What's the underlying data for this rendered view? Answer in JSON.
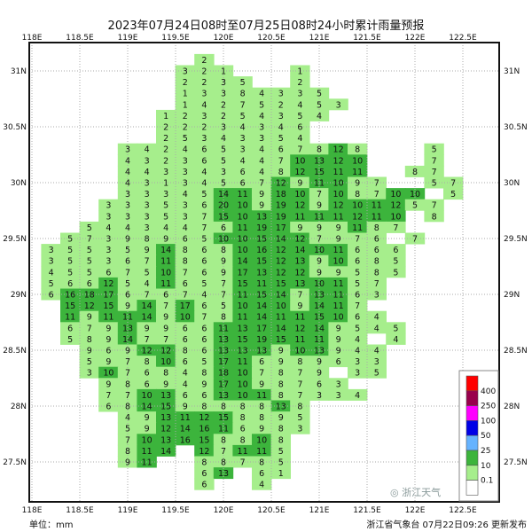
{
  "title": "2023年07月24日08时至07月25日08时24小时累计雨量预报",
  "unit_label": "单位：mm",
  "issuer": "浙江省气象台 07月22日09:26 更新发布",
  "watermark": "浙江天气",
  "lon_ticks": [
    "118E",
    "118.5E",
    "119E",
    "119.5E",
    "120E",
    "120.5E",
    "121E",
    "121.5E",
    "122E",
    "122.5E"
  ],
  "lat_ticks": [
    "31N",
    "30.5N",
    "30N",
    "29.5N",
    "29N",
    "28.5N",
    "28N",
    "27.5N"
  ],
  "legend": {
    "levels": [
      "0.1",
      "10",
      "25",
      "50",
      "100",
      "250",
      "400"
    ],
    "colors": [
      "#ffffff",
      "#a6ee8c",
      "#3cb43c",
      "#66b3ff",
      "#0000e6",
      "#ff00ff",
      "#99004c",
      "#ff0000"
    ]
  },
  "colors": {
    "land_light": "#a6ee8c",
    "land_dark": "#3cb43c",
    "island": "#777777"
  },
  "grid": {
    "lons": [
      118.2,
      118.4,
      118.6,
      118.8,
      119.0,
      119.2,
      119.4,
      119.6,
      119.8,
      120.0,
      120.2,
      120.4,
      120.6,
      120.8,
      121.0,
      121.2,
      121.4,
      121.6,
      121.8,
      122.0,
      122.2,
      122.4
    ],
    "rows": [
      {
        "lat": 31.1,
        "v": [
          null,
          null,
          null,
          null,
          null,
          null,
          null,
          null,
          2,
          null,
          null,
          null,
          null,
          null,
          null,
          null,
          null,
          null,
          null,
          null,
          null,
          null
        ]
      },
      {
        "lat": 31.0,
        "v": [
          null,
          null,
          null,
          null,
          null,
          null,
          null,
          3,
          2,
          1,
          null,
          null,
          null,
          1,
          null,
          null,
          null,
          null,
          null,
          null,
          null,
          null
        ]
      },
      {
        "lat": 30.9,
        "v": [
          null,
          null,
          null,
          null,
          null,
          null,
          null,
          2,
          2,
          3,
          5,
          null,
          null,
          2,
          null,
          null,
          null,
          null,
          null,
          null,
          null,
          null
        ]
      },
      {
        "lat": 30.8,
        "v": [
          null,
          null,
          null,
          null,
          null,
          null,
          null,
          1,
          3,
          3,
          8,
          4,
          3,
          3,
          5,
          null,
          null,
          null,
          null,
          null,
          null,
          null
        ]
      },
      {
        "lat": 30.7,
        "v": [
          null,
          null,
          null,
          null,
          null,
          null,
          null,
          1,
          4,
          2,
          7,
          5,
          2,
          4,
          5,
          3,
          null,
          null,
          null,
          null,
          null,
          null
        ]
      },
      {
        "lat": 30.6,
        "v": [
          null,
          null,
          null,
          null,
          null,
          null,
          1,
          2,
          3,
          2,
          5,
          4,
          3,
          5,
          4,
          null,
          null,
          null,
          null,
          null,
          null,
          null
        ]
      },
      {
        "lat": 30.5,
        "v": [
          null,
          null,
          null,
          null,
          null,
          null,
          2,
          2,
          2,
          3,
          4,
          3,
          4,
          6,
          null,
          null,
          null,
          null,
          null,
          null,
          null,
          null
        ]
      },
      {
        "lat": 30.4,
        "v": [
          null,
          null,
          null,
          null,
          null,
          null,
          2,
          5,
          3,
          4,
          3,
          3,
          5,
          4,
          null,
          null,
          null,
          null,
          null,
          null,
          null,
          null
        ]
      },
      {
        "lat": 30.3,
        "v": [
          null,
          null,
          null,
          null,
          3,
          4,
          2,
          4,
          6,
          5,
          3,
          4,
          6,
          7,
          8,
          12,
          8,
          null,
          null,
          null,
          5,
          null
        ]
      },
      {
        "lat": 30.2,
        "v": [
          null,
          null,
          null,
          null,
          4,
          3,
          2,
          3,
          6,
          5,
          4,
          4,
          7,
          10,
          13,
          12,
          10,
          null,
          null,
          null,
          7,
          null
        ]
      },
      {
        "lat": 30.1,
        "v": [
          null,
          null,
          null,
          null,
          4,
          4,
          3,
          3,
          4,
          3,
          6,
          4,
          8,
          12,
          15,
          11,
          11,
          null,
          null,
          8,
          7,
          null
        ]
      },
      {
        "lat": 30.0,
        "v": [
          null,
          null,
          null,
          null,
          4,
          3,
          1,
          3,
          4,
          5,
          6,
          7,
          12,
          9,
          11,
          10,
          9,
          7,
          null,
          null,
          5,
          7
        ]
      },
      {
        "lat": 29.9,
        "v": [
          null,
          null,
          null,
          null,
          3,
          3,
          3,
          4,
          5,
          14,
          11,
          9,
          18,
          10,
          7,
          10,
          8,
          7,
          10,
          10,
          null,
          5
        ]
      },
      {
        "lat": 29.8,
        "v": [
          null,
          null,
          null,
          3,
          3,
          3,
          5,
          3,
          6,
          20,
          10,
          9,
          19,
          12,
          9,
          12,
          10,
          11,
          12,
          5,
          7,
          null
        ]
      },
      {
        "lat": 29.7,
        "v": [
          null,
          null,
          null,
          3,
          3,
          3,
          5,
          3,
          7,
          15,
          10,
          13,
          19,
          11,
          11,
          11,
          12,
          11,
          10,
          null,
          8,
          null
        ]
      },
      {
        "lat": 29.6,
        "v": [
          null,
          null,
          5,
          4,
          4,
          3,
          4,
          4,
          7,
          6,
          11,
          19,
          17,
          9,
          9,
          9,
          11,
          8,
          7,
          null,
          null,
          null
        ]
      },
      {
        "lat": 29.5,
        "v": [
          null,
          5,
          7,
          3,
          9,
          8,
          9,
          6,
          5,
          10,
          10,
          15,
          14,
          12,
          7,
          9,
          7,
          6,
          null,
          7,
          null,
          null
        ]
      },
      {
        "lat": 29.4,
        "v": [
          3,
          5,
          5,
          3,
          5,
          9,
          14,
          8,
          6,
          8,
          10,
          16,
          12,
          14,
          10,
          11,
          6,
          6,
          6,
          null,
          null,
          null
        ]
      },
      {
        "lat": 29.3,
        "v": [
          3,
          5,
          5,
          3,
          6,
          7,
          11,
          8,
          6,
          9,
          14,
          15,
          12,
          13,
          9,
          10,
          6,
          8,
          5,
          null,
          null,
          null
        ]
      },
      {
        "lat": 29.2,
        "v": [
          4,
          5,
          5,
          6,
          7,
          5,
          10,
          7,
          6,
          9,
          17,
          13,
          12,
          12,
          9,
          9,
          5,
          8,
          5,
          null,
          null,
          null
        ]
      },
      {
        "lat": 29.1,
        "v": [
          5,
          6,
          6,
          12,
          5,
          4,
          11,
          6,
          5,
          7,
          15,
          11,
          15,
          13,
          10,
          11,
          5,
          7,
          null,
          null,
          null,
          null
        ]
      },
      {
        "lat": 29.0,
        "v": [
          6,
          16,
          18,
          17,
          6,
          7,
          6,
          7,
          4,
          7,
          11,
          15,
          14,
          7,
          13,
          11,
          6,
          3,
          null,
          null,
          null,
          null
        ]
      },
      {
        "lat": 28.9,
        "v": [
          null,
          15,
          12,
          15,
          9,
          14,
          7,
          17,
          6,
          5,
          10,
          14,
          10,
          9,
          14,
          11,
          7,
          null,
          null,
          null,
          null,
          null
        ]
      },
      {
        "lat": 28.8,
        "v": [
          null,
          11,
          9,
          11,
          11,
          14,
          9,
          10,
          7,
          8,
          11,
          14,
          11,
          11,
          15,
          10,
          6,
          4,
          null,
          null,
          null,
          null
        ]
      },
      {
        "lat": 28.7,
        "v": [
          null,
          6,
          7,
          9,
          13,
          9,
          9,
          6,
          6,
          11,
          13,
          17,
          14,
          12,
          14,
          9,
          5,
          4,
          5,
          null,
          null,
          null
        ]
      },
      {
        "lat": 28.6,
        "v": [
          null,
          5,
          8,
          9,
          14,
          7,
          7,
          6,
          6,
          13,
          15,
          19,
          15,
          11,
          11,
          9,
          4,
          null,
          4,
          null,
          null,
          null
        ]
      },
      {
        "lat": 28.5,
        "v": [
          null,
          null,
          9,
          6,
          9,
          12,
          12,
          8,
          6,
          13,
          13,
          13,
          9,
          10,
          13,
          9,
          4,
          4,
          null,
          null,
          null,
          null
        ]
      },
      {
        "lat": 28.4,
        "v": [
          null,
          null,
          5,
          9,
          7,
          8,
          10,
          6,
          5,
          17,
          11,
          6,
          9,
          8,
          9,
          6,
          3,
          3,
          null,
          null,
          null,
          null
        ]
      },
      {
        "lat": 28.3,
        "v": [
          null,
          null,
          3,
          10,
          7,
          6,
          8,
          4,
          8,
          18,
          10,
          7,
          8,
          7,
          9,
          null,
          3,
          5,
          null,
          null,
          null,
          null
        ]
      },
      {
        "lat": 28.2,
        "v": [
          null,
          null,
          null,
          9,
          8,
          6,
          9,
          4,
          9,
          17,
          10,
          9,
          8,
          7,
          6,
          3,
          null,
          null,
          null,
          null,
          null,
          null
        ]
      },
      {
        "lat": 28.1,
        "v": [
          null,
          null,
          null,
          7,
          7,
          10,
          13,
          6,
          6,
          13,
          10,
          11,
          8,
          7,
          3,
          3,
          4,
          null,
          null,
          null,
          null,
          null
        ]
      },
      {
        "lat": 28.0,
        "v": [
          null,
          null,
          null,
          6,
          8,
          14,
          15,
          9,
          8,
          8,
          8,
          8,
          13,
          8,
          null,
          null,
          null,
          null,
          null,
          null,
          null,
          null
        ]
      },
      {
        "lat": 27.9,
        "v": [
          null,
          null,
          null,
          null,
          4,
          9,
          13,
          11,
          12,
          15,
          8,
          8,
          9,
          5,
          null,
          null,
          null,
          null,
          null,
          null,
          null,
          null
        ]
      },
      {
        "lat": 27.8,
        "v": [
          null,
          null,
          null,
          null,
          5,
          9,
          12,
          14,
          16,
          11,
          6,
          9,
          8,
          3,
          null,
          null,
          null,
          null,
          null,
          null,
          null,
          null
        ]
      },
      {
        "lat": 27.7,
        "v": [
          null,
          null,
          null,
          null,
          7,
          10,
          13,
          16,
          15,
          8,
          8,
          10,
          8,
          null,
          null,
          null,
          null,
          null,
          null,
          null,
          null,
          null
        ]
      },
      {
        "lat": 27.6,
        "v": [
          null,
          null,
          null,
          null,
          8,
          11,
          14,
          null,
          12,
          7,
          11,
          11,
          5,
          null,
          null,
          null,
          null,
          null,
          null,
          null,
          null,
          null
        ]
      },
      {
        "lat": 27.5,
        "v": [
          null,
          null,
          null,
          null,
          9,
          11,
          null,
          null,
          8,
          8,
          7,
          8,
          5,
          null,
          null,
          null,
          null,
          null,
          null,
          null,
          null,
          null
        ]
      },
      {
        "lat": 27.4,
        "v": [
          null,
          null,
          null,
          null,
          null,
          null,
          null,
          null,
          6,
          13,
          null,
          6,
          1,
          null,
          null,
          null,
          null,
          null,
          null,
          null,
          null,
          null
        ]
      },
      {
        "lat": 27.3,
        "v": [
          null,
          null,
          null,
          null,
          null,
          null,
          null,
          null,
          6,
          null,
          null,
          4,
          null,
          null,
          null,
          null,
          null,
          null,
          null,
          null,
          null,
          null
        ]
      }
    ]
  }
}
